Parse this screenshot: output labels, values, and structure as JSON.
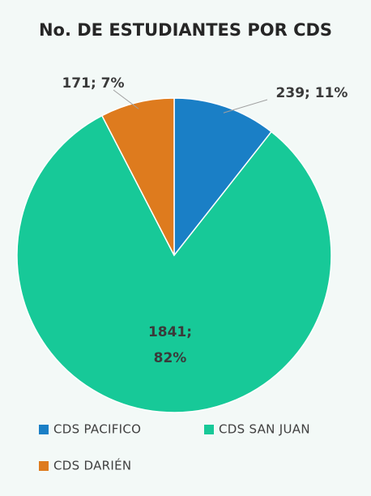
{
  "chart_data": {
    "type": "pie",
    "title": "No. DE ESTUDIANTES POR CDS",
    "categories": [
      "CDS PACIFICO",
      "CDS SAN JUAN",
      "CDS DARIÉN"
    ],
    "values": [
      239,
      1841,
      171
    ],
    "value_labels": [
      "239; 11%",
      "1841; 82%",
      "171; 7%"
    ],
    "colors": [
      "#1a7fc6",
      "#17c998",
      "#de7b1e"
    ]
  }
}
